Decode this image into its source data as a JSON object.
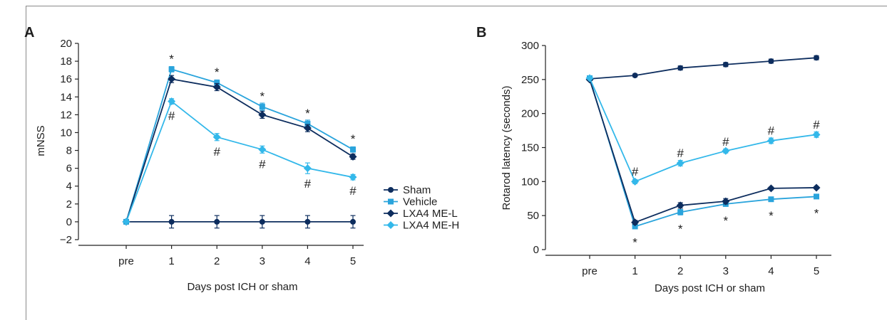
{
  "chart_data": [
    {
      "panel_label": "A",
      "type": "line",
      "xlabel": "Days post ICH or sham",
      "ylabel": "mNSS",
      "categories": [
        "pre",
        "1",
        "2",
        "3",
        "4",
        "5"
      ],
      "ylim": [
        -2,
        20
      ],
      "yticks": [
        "−2",
        "0",
        "2",
        "4",
        "6",
        "8",
        "10",
        "12",
        "14",
        "16",
        "18",
        "20"
      ],
      "grid": false,
      "legend_position": "right",
      "series": [
        {
          "name": "Sham",
          "color": "#0d2d5e",
          "marker": "circle",
          "values": [
            0,
            0,
            0,
            0,
            0,
            0
          ],
          "errors": [
            0,
            0.7,
            0.7,
            0.7,
            0.7,
            0.7
          ]
        },
        {
          "name": "Vehicle",
          "color": "#2aa4dc",
          "marker": "square",
          "values": [
            0,
            17.1,
            15.6,
            12.9,
            11.0,
            8.1
          ],
          "errors": [
            0,
            0.3,
            0.3,
            0.4,
            0.4,
            0.3
          ]
        },
        {
          "name": "LXA4 ME-L",
          "color": "#0d2d5e",
          "marker": "diamond",
          "values": [
            0,
            16.0,
            15.1,
            12.0,
            10.5,
            7.3
          ],
          "errors": [
            0,
            0.4,
            0.4,
            0.4,
            0.4,
            0.3
          ]
        },
        {
          "name": "LXA4 ME-H",
          "color": "#33b8ea",
          "marker": "diamond",
          "values": [
            0,
            13.5,
            9.5,
            8.1,
            6.0,
            5.0
          ],
          "errors": [
            0,
            0.3,
            0.4,
            0.4,
            0.6,
            0.3
          ]
        }
      ],
      "annotations": [
        {
          "text": "*",
          "category": "1",
          "y": 18.3
        },
        {
          "text": "*",
          "category": "2",
          "y": 16.8
        },
        {
          "text": "*",
          "category": "3",
          "y": 14.1
        },
        {
          "text": "*",
          "category": "4",
          "y": 12.2
        },
        {
          "text": "*",
          "category": "5",
          "y": 9.3
        },
        {
          "text": "#",
          "category": "1",
          "y": 11.9
        },
        {
          "text": "#",
          "category": "2",
          "y": 7.9
        },
        {
          "text": "#",
          "category": "3",
          "y": 6.5
        },
        {
          "text": "#",
          "category": "4",
          "y": 4.3
        },
        {
          "text": "#",
          "category": "5",
          "y": 3.5
        }
      ]
    },
    {
      "panel_label": "B",
      "type": "line",
      "xlabel": "Days post ICH or sham",
      "ylabel": "Rotarod latency (seconds)",
      "categories": [
        "pre",
        "1",
        "2",
        "3",
        "4",
        "5"
      ],
      "ylim": [
        0,
        300
      ],
      "yticks": [
        "0",
        "50",
        "100",
        "150",
        "200",
        "250",
        "300"
      ],
      "grid": false,
      "series": [
        {
          "name": "Sham",
          "color": "#0d2d5e",
          "marker": "circle",
          "values": [
            251,
            256,
            267,
            272,
            277,
            282
          ],
          "errors": [
            0,
            2,
            3,
            3,
            3,
            3
          ]
        },
        {
          "name": "Vehicle",
          "color": "#2aa4dc",
          "marker": "square",
          "values": [
            252,
            34,
            55,
            67,
            74,
            78
          ],
          "errors": [
            0,
            3,
            4,
            3,
            3,
            3
          ]
        },
        {
          "name": "LXA4 ME-L",
          "color": "#0d2d5e",
          "marker": "diamond",
          "values": [
            250,
            40,
            65,
            71,
            90,
            91
          ],
          "errors": [
            0,
            3,
            4,
            4,
            2,
            2
          ]
        },
        {
          "name": "LXA4 ME-H",
          "color": "#33b8ea",
          "marker": "diamond",
          "values": [
            252,
            100,
            127,
            145,
            160,
            169
          ],
          "errors": [
            0,
            3,
            4,
            3,
            4,
            4
          ]
        }
      ],
      "annotations": [
        {
          "text": "#",
          "category": "1",
          "y": 115
        },
        {
          "text": "#",
          "category": "2",
          "y": 142
        },
        {
          "text": "#",
          "category": "3",
          "y": 159
        },
        {
          "text": "#",
          "category": "4",
          "y": 175
        },
        {
          "text": "#",
          "category": "5",
          "y": 184
        },
        {
          "text": "*",
          "category": "1",
          "y": 11
        },
        {
          "text": "*",
          "category": "2",
          "y": 31
        },
        {
          "text": "*",
          "category": "3",
          "y": 43
        },
        {
          "text": "*",
          "category": "4",
          "y": 50
        },
        {
          "text": "*",
          "category": "5",
          "y": 54
        }
      ]
    }
  ]
}
